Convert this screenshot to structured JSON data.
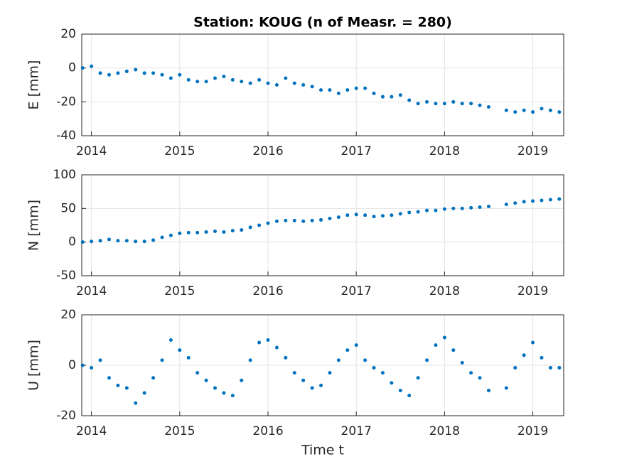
{
  "chart_data": [
    {
      "type": "scatter",
      "title": "Station: KOUG (n of Measr. = 280)",
      "ylabel": "E [mm]",
      "color": "#0072bd",
      "grid": true,
      "xlim": [
        2013.89,
        2019.35
      ],
      "xticks": [
        2014,
        2015,
        2016,
        2017,
        2018,
        2019
      ],
      "ylim": [
        -40,
        20
      ],
      "yticks": [
        -40,
        -20,
        0,
        20
      ],
      "x": [
        2013.9,
        2014.0,
        2014.1,
        2014.2,
        2014.3,
        2014.4,
        2014.5,
        2014.6,
        2014.7,
        2014.8,
        2014.9,
        2015.0,
        2015.1,
        2015.2,
        2015.3,
        2015.4,
        2015.5,
        2015.6,
        2015.7,
        2015.8,
        2015.9,
        2016.0,
        2016.1,
        2016.2,
        2016.3,
        2016.4,
        2016.5,
        2016.6,
        2016.7,
        2016.8,
        2016.9,
        2017.0,
        2017.1,
        2017.2,
        2017.3,
        2017.4,
        2017.5,
        2017.6,
        2017.7,
        2017.8,
        2017.9,
        2018.0,
        2018.1,
        2018.2,
        2018.3,
        2018.4,
        2018.5,
        2018.7,
        2018.8,
        2018.9,
        2019.0,
        2019.1,
        2019.2,
        2019.3
      ],
      "values": [
        0,
        1,
        -3,
        -4,
        -3,
        -2,
        -1,
        -3,
        -3,
        -4,
        -6,
        -4,
        -7,
        -8,
        -8,
        -6,
        -5,
        -7,
        -8,
        -9,
        -7,
        -9,
        -10,
        -6,
        -9,
        -10,
        -11,
        -13,
        -13,
        -15,
        -13,
        -12,
        -12,
        -15,
        -17,
        -17,
        -16,
        -19,
        -21,
        -20,
        -21,
        -21,
        -20,
        -21,
        -21,
        -22,
        -23,
        -25,
        -26,
        -25,
        -26,
        -24,
        -25,
        -26
      ]
    },
    {
      "type": "scatter",
      "ylabel": "N [mm]",
      "color": "#0072bd",
      "grid": true,
      "xlim": [
        2013.89,
        2019.35
      ],
      "xticks": [
        2014,
        2015,
        2016,
        2017,
        2018,
        2019
      ],
      "ylim": [
        -50,
        100
      ],
      "yticks": [
        -50,
        0,
        50,
        100
      ],
      "x": [
        2013.9,
        2014.0,
        2014.1,
        2014.2,
        2014.3,
        2014.4,
        2014.5,
        2014.6,
        2014.7,
        2014.8,
        2014.9,
        2015.0,
        2015.1,
        2015.2,
        2015.3,
        2015.4,
        2015.5,
        2015.6,
        2015.7,
        2015.8,
        2015.9,
        2016.0,
        2016.1,
        2016.2,
        2016.3,
        2016.4,
        2016.5,
        2016.6,
        2016.7,
        2016.8,
        2016.9,
        2017.0,
        2017.1,
        2017.2,
        2017.3,
        2017.4,
        2017.5,
        2017.6,
        2017.7,
        2017.8,
        2017.9,
        2018.0,
        2018.1,
        2018.2,
        2018.3,
        2018.4,
        2018.5,
        2018.7,
        2018.8,
        2018.9,
        2019.0,
        2019.1,
        2019.2,
        2019.3
      ],
      "values": [
        0,
        1,
        2,
        4,
        2,
        2,
        1,
        1,
        3,
        7,
        10,
        13,
        14,
        14,
        15,
        16,
        15,
        17,
        18,
        22,
        25,
        28,
        31,
        32,
        32,
        31,
        32,
        33,
        35,
        37,
        40,
        41,
        40,
        38,
        39,
        40,
        42,
        44,
        45,
        47,
        47,
        49,
        50,
        50,
        51,
        52,
        53,
        56,
        58,
        60,
        61,
        62,
        63,
        64
      ]
    },
    {
      "type": "scatter",
      "ylabel": "U [mm]",
      "xlabel": "Time t",
      "color": "#0072bd",
      "grid": true,
      "xlim": [
        2013.89,
        2019.35
      ],
      "xticks": [
        2014,
        2015,
        2016,
        2017,
        2018,
        2019
      ],
      "ylim": [
        -20,
        20
      ],
      "yticks": [
        -20,
        0,
        20
      ],
      "x": [
        2013.9,
        2014.0,
        2014.1,
        2014.2,
        2014.3,
        2014.4,
        2014.5,
        2014.6,
        2014.7,
        2014.8,
        2014.9,
        2015.0,
        2015.1,
        2015.2,
        2015.3,
        2015.4,
        2015.5,
        2015.6,
        2015.7,
        2015.8,
        2015.9,
        2016.0,
        2016.1,
        2016.2,
        2016.3,
        2016.4,
        2016.5,
        2016.6,
        2016.7,
        2016.8,
        2016.9,
        2017.0,
        2017.1,
        2017.2,
        2017.3,
        2017.4,
        2017.5,
        2017.6,
        2017.7,
        2017.8,
        2017.9,
        2018.0,
        2018.1,
        2018.2,
        2018.3,
        2018.4,
        2018.5,
        2018.7,
        2018.8,
        2018.9,
        2019.0,
        2019.1,
        2019.2,
        2019.3
      ],
      "values": [
        0,
        -1,
        2,
        -5,
        -8,
        -9,
        -15,
        -11,
        -5,
        2,
        10,
        6,
        3,
        -3,
        -6,
        -9,
        -11,
        -12,
        -6,
        2,
        9,
        10,
        7,
        3,
        -3,
        -6,
        -9,
        -8,
        -3,
        2,
        6,
        8,
        2,
        -1,
        -3,
        -7,
        -10,
        -12,
        -5,
        2,
        8,
        11,
        6,
        1,
        -3,
        -5,
        -10,
        -9,
        -1,
        4,
        9,
        3,
        -1,
        -1
      ]
    }
  ]
}
